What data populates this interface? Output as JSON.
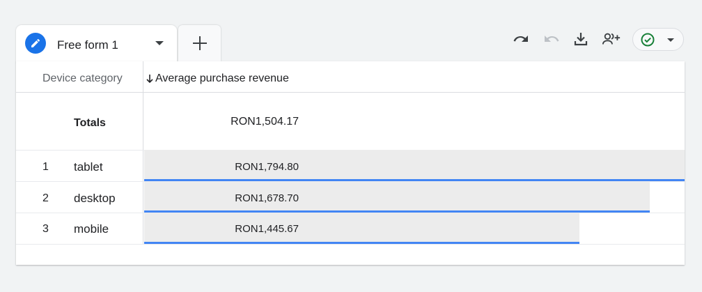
{
  "tab": {
    "title": "Free form 1"
  },
  "toolbar": {
    "undo_icon": "undo-icon",
    "redo_icon": "redo-icon",
    "download_icon": "download-icon",
    "share_icon": "share-users-icon",
    "status_icon": "check-circle-icon"
  },
  "table": {
    "dimension_header": "Device category",
    "metric_header": "Average purchase revenue",
    "sort": "descending",
    "totals": {
      "label": "Totals",
      "value": "RON1,504.17"
    },
    "max_value": 1794.8,
    "rows": [
      {
        "index": "1",
        "device": "tablet",
        "value_text": "RON1,794.80",
        "value": 1794.8
      },
      {
        "index": "2",
        "device": "desktop",
        "value_text": "RON1,678.70",
        "value": 1678.7
      },
      {
        "index": "3",
        "device": "mobile",
        "value_text": "RON1,445.67",
        "value": 1445.67
      }
    ]
  },
  "colors": {
    "accent": "#1a73e8",
    "bar_line": "#4285f4",
    "bar_fill": "#ececec",
    "status_green": "#188038"
  }
}
